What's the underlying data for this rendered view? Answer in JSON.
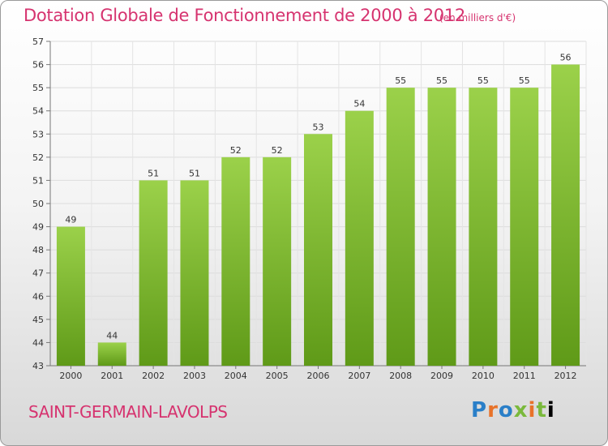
{
  "header": {
    "title": "Dotation Globale de Fonctionnement de 2000 à 2012",
    "unit": "(en milliers d'€)"
  },
  "footer": {
    "city": "SAINT-GERMAIN-LAVOLPS",
    "logo": "Proxiti"
  },
  "colors": {
    "title": "#d6336f",
    "bar_top": "#9bd14a",
    "bar_bottom": "#5f9a18"
  },
  "chart_data": {
    "type": "bar",
    "title": "Dotation Globale de Fonctionnement de 2000 à 2012",
    "categories": [
      "2000",
      "2001",
      "2002",
      "2003",
      "2004",
      "2005",
      "2006",
      "2007",
      "2008",
      "2009",
      "2010",
      "2011",
      "2012"
    ],
    "values": [
      49,
      44,
      51,
      51,
      52,
      52,
      53,
      54,
      55,
      55,
      55,
      55,
      56
    ],
    "ylim": [
      43,
      57
    ],
    "yticks": [
      43,
      44,
      45,
      46,
      47,
      48,
      49,
      50,
      51,
      52,
      53,
      54,
      55,
      56,
      57
    ],
    "grid": true,
    "xlabel": "",
    "ylabel": ""
  }
}
